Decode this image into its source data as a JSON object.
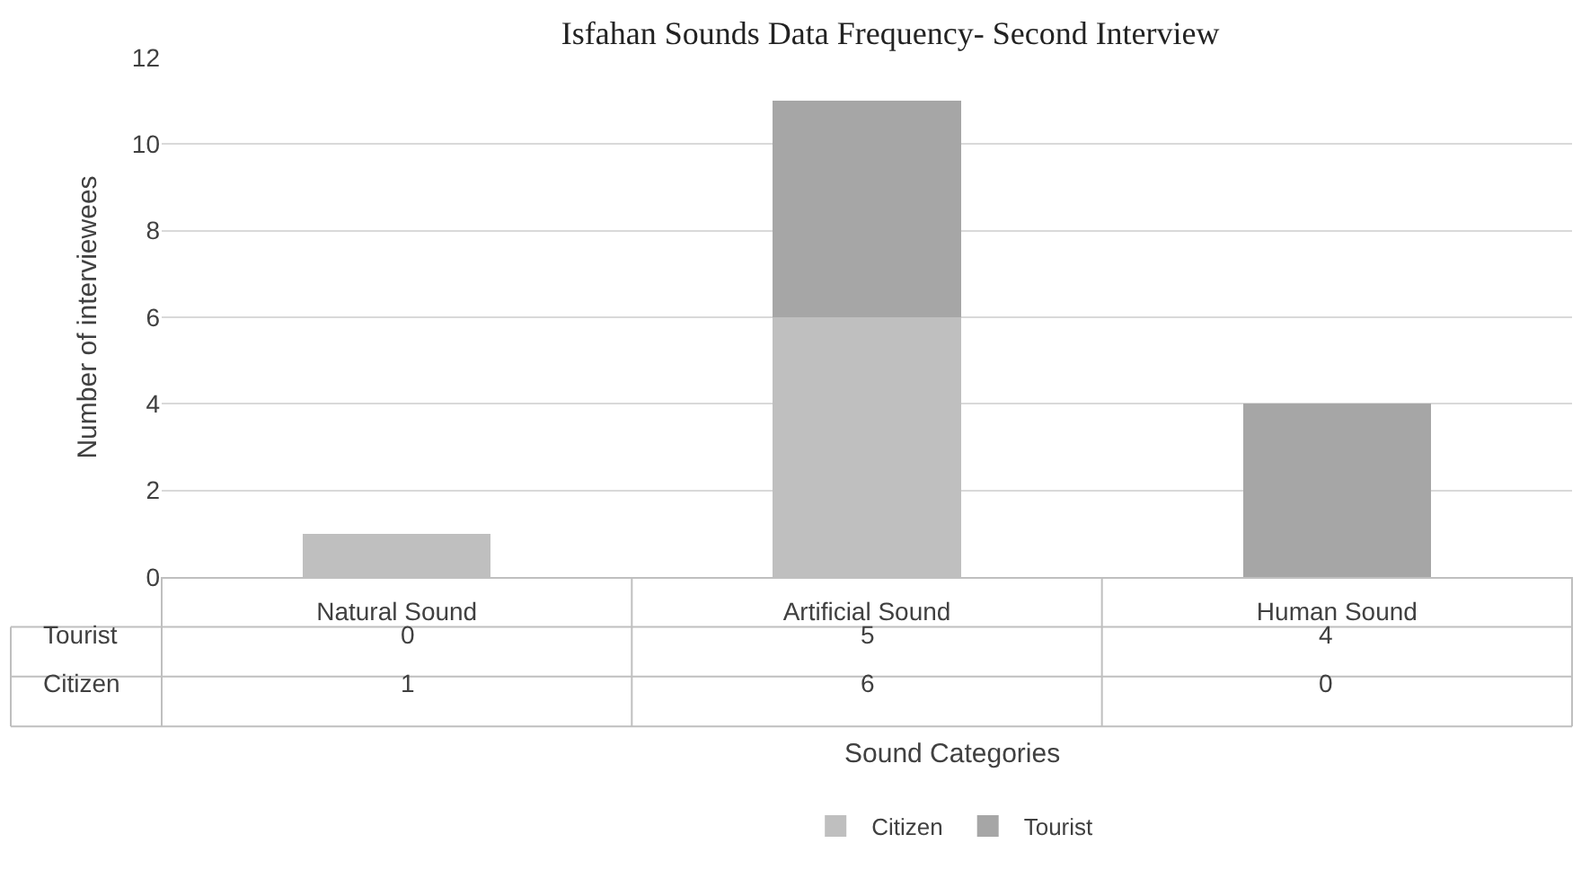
{
  "chart_data": {
    "type": "bar",
    "title": "Isfahan Sounds Data Frequency- Second Interview",
    "xlabel": "Sound Categories",
    "ylabel": "Number of interviewees",
    "categories": [
      "Natural Sound",
      "Artificial Sound",
      "Human Sound"
    ],
    "series": [
      {
        "name": "Citizen",
        "color": "#bfbfbf",
        "values": [
          1,
          6,
          0
        ]
      },
      {
        "name": "Tourist",
        "color": "#a6a6a6",
        "values": [
          0,
          5,
          4
        ]
      }
    ],
    "stacked": true,
    "ylim": [
      0,
      12
    ],
    "yticks": [
      0,
      2,
      4,
      6,
      8,
      10,
      12
    ],
    "grid": "y",
    "legend": "bottom",
    "data_labels": true
  }
}
